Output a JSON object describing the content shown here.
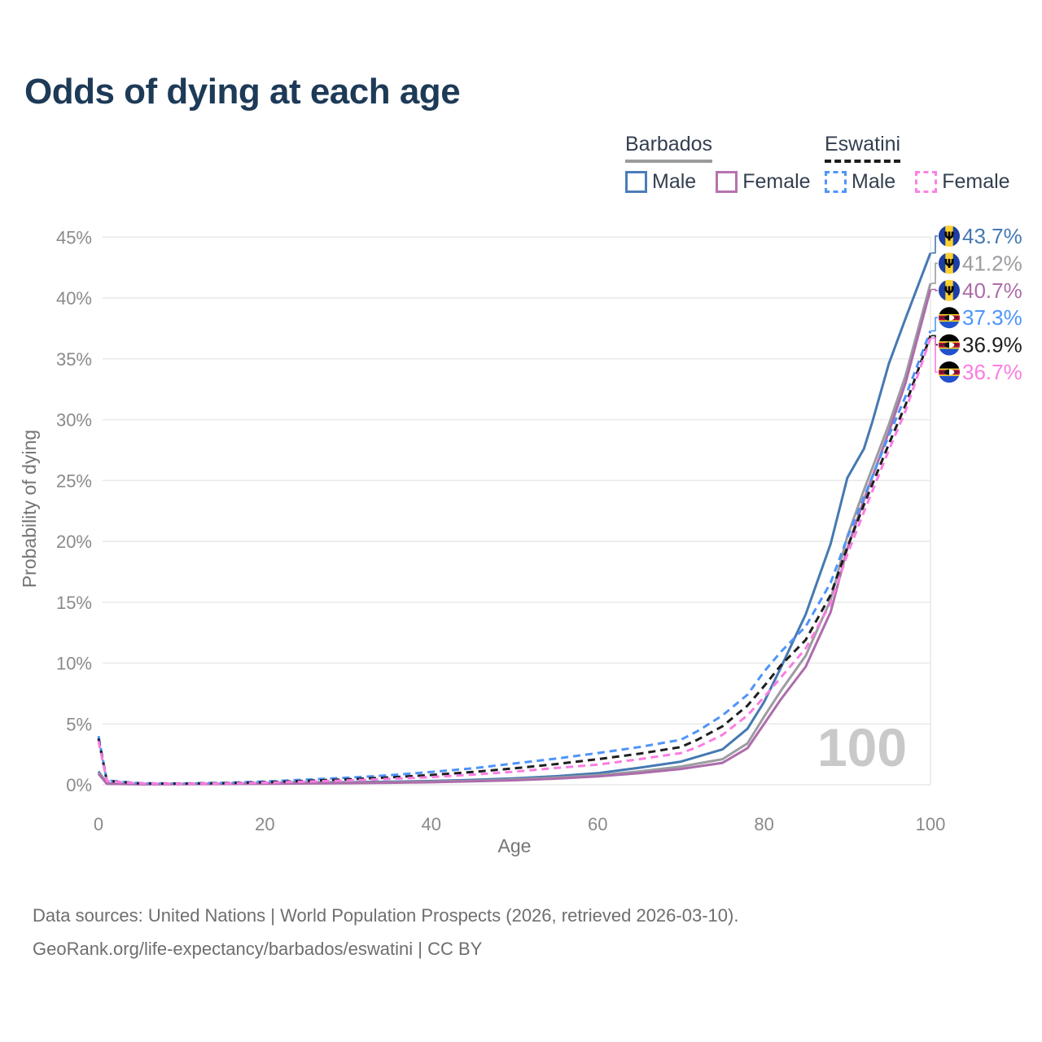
{
  "title": "Odds of dying at each age",
  "legend": {
    "groups": [
      {
        "name": "Barbados",
        "line_style": "solid",
        "items": [
          {
            "label": "Male",
            "color": "#4a7db8"
          },
          {
            "label": "Female",
            "color": "#b573af"
          }
        ]
      },
      {
        "name": "Eswatini",
        "line_style": "dashed",
        "items": [
          {
            "label": "Male",
            "color": "#4e94fa"
          },
          {
            "label": "Female",
            "color": "#fb81e6"
          }
        ]
      }
    ]
  },
  "chart_data": {
    "type": "line",
    "title": "Odds of dying at each age",
    "xlabel": "Age",
    "ylabel": "Probability of dying",
    "xlim": [
      0,
      100
    ],
    "ylim": [
      0,
      45
    ],
    "x_ticks": [
      0,
      20,
      40,
      60,
      80,
      100
    ],
    "y_ticks": [
      0,
      5,
      10,
      15,
      20,
      25,
      30,
      35,
      40,
      45
    ],
    "y_tick_suffix": "%",
    "grid": "horizontal",
    "legend_position": "top-right",
    "watermark": "100",
    "series": [
      {
        "name": "Barbados Male",
        "country": "Barbados",
        "sex": "Male",
        "color": "#4579b2",
        "dash": "",
        "flag": "barbados",
        "end_label": "43.7%",
        "points": [
          [
            0,
            1.1
          ],
          [
            1,
            0.1
          ],
          [
            5,
            0.06
          ],
          [
            10,
            0.07
          ],
          [
            15,
            0.1
          ],
          [
            20,
            0.15
          ],
          [
            25,
            0.18
          ],
          [
            30,
            0.21
          ],
          [
            35,
            0.25
          ],
          [
            40,
            0.31
          ],
          [
            45,
            0.4
          ],
          [
            50,
            0.53
          ],
          [
            55,
            0.7
          ],
          [
            60,
            0.95
          ],
          [
            65,
            1.4
          ],
          [
            70,
            1.9
          ],
          [
            75,
            2.9
          ],
          [
            78,
            4.6
          ],
          [
            80,
            6.8
          ],
          [
            82,
            9.6
          ],
          [
            85,
            14.0
          ],
          [
            88,
            19.8
          ],
          [
            90,
            25.2
          ],
          [
            91,
            26.4
          ],
          [
            92,
            27.6
          ],
          [
            93,
            29.8
          ],
          [
            95,
            34.6
          ],
          [
            97,
            38.3
          ],
          [
            100,
            43.7
          ]
        ]
      },
      {
        "name": "Barbados Both sexes",
        "country": "Barbados",
        "sex": "Both",
        "color": "#9c9ca1",
        "dash": "",
        "flag": "barbados",
        "end_label": "41.2%",
        "points": [
          [
            0,
            1.0
          ],
          [
            1,
            0.09
          ],
          [
            5,
            0.05
          ],
          [
            10,
            0.06
          ],
          [
            15,
            0.08
          ],
          [
            20,
            0.12
          ],
          [
            25,
            0.14
          ],
          [
            30,
            0.17
          ],
          [
            35,
            0.2
          ],
          [
            40,
            0.26
          ],
          [
            45,
            0.33
          ],
          [
            50,
            0.44
          ],
          [
            55,
            0.58
          ],
          [
            60,
            0.78
          ],
          [
            65,
            1.1
          ],
          [
            70,
            1.5
          ],
          [
            75,
            2.1
          ],
          [
            78,
            3.4
          ],
          [
            80,
            5.6
          ],
          [
            82,
            7.7
          ],
          [
            85,
            10.6
          ],
          [
            88,
            15.2
          ],
          [
            90,
            20.4
          ],
          [
            92,
            24.2
          ],
          [
            95,
            29.6
          ],
          [
            97,
            33.6
          ],
          [
            100,
            41.2
          ]
        ]
      },
      {
        "name": "Barbados Female",
        "country": "Barbados",
        "sex": "Female",
        "color": "#ad6cab",
        "dash": "",
        "flag": "barbados",
        "end_label": "40.7%",
        "points": [
          [
            0,
            0.9
          ],
          [
            1,
            0.08
          ],
          [
            5,
            0.04
          ],
          [
            10,
            0.05
          ],
          [
            15,
            0.07
          ],
          [
            20,
            0.09
          ],
          [
            25,
            0.11
          ],
          [
            30,
            0.13
          ],
          [
            35,
            0.16
          ],
          [
            40,
            0.21
          ],
          [
            45,
            0.28
          ],
          [
            50,
            0.37
          ],
          [
            55,
            0.5
          ],
          [
            60,
            0.68
          ],
          [
            65,
            0.95
          ],
          [
            70,
            1.3
          ],
          [
            75,
            1.8
          ],
          [
            78,
            3.0
          ],
          [
            80,
            5.0
          ],
          [
            82,
            7.0
          ],
          [
            85,
            9.7
          ],
          [
            88,
            14.2
          ],
          [
            90,
            19.4
          ],
          [
            92,
            23.4
          ],
          [
            95,
            29.0
          ],
          [
            97,
            33.0
          ],
          [
            100,
            40.7
          ]
        ]
      },
      {
        "name": "Eswatini Male",
        "country": "Eswatini",
        "sex": "Male",
        "color": "#4e94fa",
        "dash": "9 6",
        "flag": "eswatini",
        "end_label": "37.3%",
        "points": [
          [
            0,
            4.0
          ],
          [
            1,
            0.35
          ],
          [
            5,
            0.13
          ],
          [
            10,
            0.11
          ],
          [
            15,
            0.16
          ],
          [
            20,
            0.27
          ],
          [
            25,
            0.42
          ],
          [
            30,
            0.58
          ],
          [
            35,
            0.78
          ],
          [
            40,
            1.05
          ],
          [
            45,
            1.35
          ],
          [
            50,
            1.75
          ],
          [
            55,
            2.15
          ],
          [
            60,
            2.6
          ],
          [
            65,
            3.1
          ],
          [
            70,
            3.7
          ],
          [
            72,
            4.4
          ],
          [
            75,
            5.7
          ],
          [
            78,
            7.4
          ],
          [
            80,
            9.3
          ],
          [
            82,
            10.9
          ],
          [
            85,
            13.0
          ],
          [
            88,
            16.6
          ],
          [
            90,
            20.3
          ],
          [
            92,
            23.6
          ],
          [
            95,
            28.7
          ],
          [
            97,
            31.9
          ],
          [
            100,
            37.3
          ]
        ]
      },
      {
        "name": "Eswatini Both sexes",
        "country": "Eswatini",
        "sex": "Both",
        "color": "#1f1f1f",
        "dash": "9 6",
        "flag": "eswatini",
        "end_label": "36.9%",
        "points": [
          [
            0,
            3.8
          ],
          [
            1,
            0.32
          ],
          [
            5,
            0.11
          ],
          [
            10,
            0.1
          ],
          [
            15,
            0.13
          ],
          [
            20,
            0.21
          ],
          [
            25,
            0.32
          ],
          [
            30,
            0.45
          ],
          [
            35,
            0.6
          ],
          [
            40,
            0.8
          ],
          [
            45,
            1.05
          ],
          [
            50,
            1.35
          ],
          [
            55,
            1.7
          ],
          [
            60,
            2.1
          ],
          [
            65,
            2.55
          ],
          [
            70,
            3.1
          ],
          [
            72,
            3.7
          ],
          [
            75,
            4.8
          ],
          [
            78,
            6.5
          ],
          [
            80,
            8.1
          ],
          [
            82,
            9.8
          ],
          [
            85,
            11.9
          ],
          [
            88,
            15.6
          ],
          [
            90,
            19.5
          ],
          [
            92,
            23.0
          ],
          [
            95,
            28.0
          ],
          [
            97,
            31.2
          ],
          [
            100,
            36.9
          ]
        ]
      },
      {
        "name": "Eswatini Female",
        "country": "Eswatini",
        "sex": "Female",
        "color": "#fa7de2",
        "dash": "9 6",
        "flag": "eswatini",
        "end_label": "36.7%",
        "points": [
          [
            0,
            3.6
          ],
          [
            1,
            0.3
          ],
          [
            5,
            0.1
          ],
          [
            10,
            0.09
          ],
          [
            15,
            0.11
          ],
          [
            20,
            0.17
          ],
          [
            25,
            0.26
          ],
          [
            30,
            0.36
          ],
          [
            35,
            0.48
          ],
          [
            40,
            0.63
          ],
          [
            45,
            0.83
          ],
          [
            50,
            1.08
          ],
          [
            55,
            1.38
          ],
          [
            60,
            1.65
          ],
          [
            65,
            2.1
          ],
          [
            70,
            2.6
          ],
          [
            72,
            3.1
          ],
          [
            75,
            4.1
          ],
          [
            78,
            5.7
          ],
          [
            80,
            7.2
          ],
          [
            82,
            8.8
          ],
          [
            85,
            11.2
          ],
          [
            88,
            14.9
          ],
          [
            90,
            18.9
          ],
          [
            92,
            22.4
          ],
          [
            95,
            27.5
          ],
          [
            97,
            30.7
          ],
          [
            100,
            36.7
          ]
        ]
      }
    ]
  },
  "footer": {
    "line1": "Data sources: United Nations | World Population Prospects (2026, retrieved 2026-03-10).",
    "line2": "GeoRank.org/life-expectancy/barbados/eswatini | CC BY"
  }
}
